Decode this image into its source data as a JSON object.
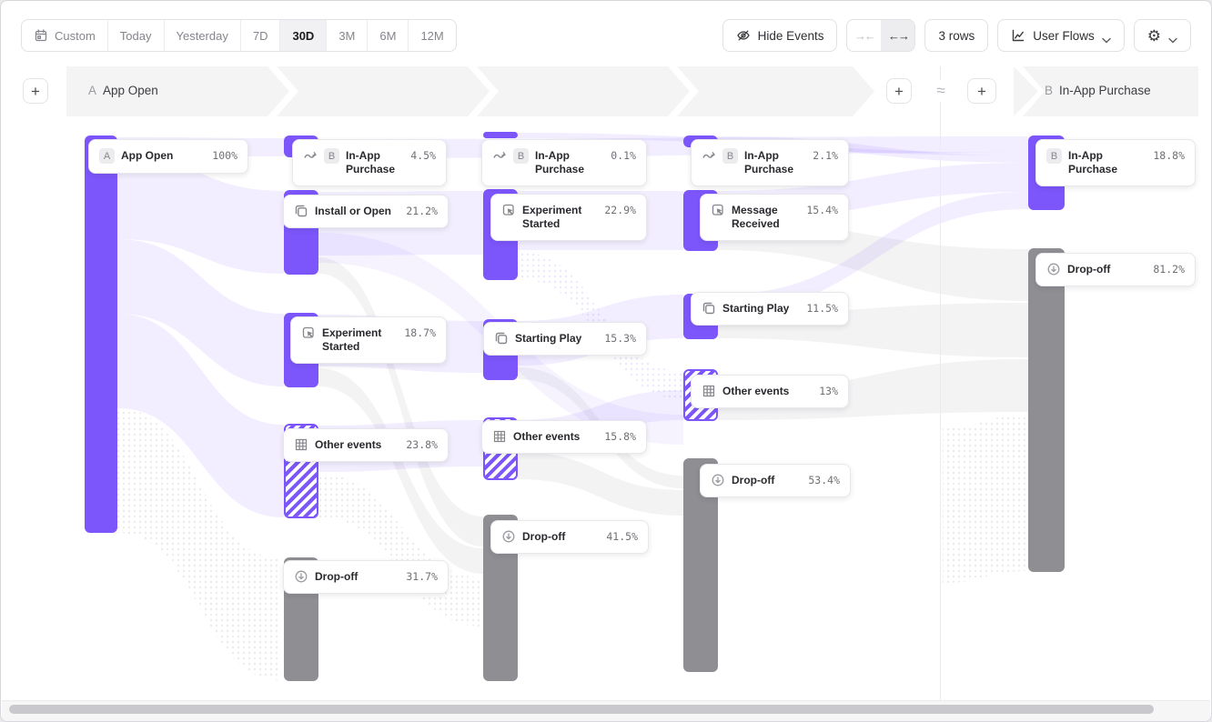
{
  "toolbar": {
    "date_ranges": {
      "items": [
        {
          "label": "Custom",
          "icon": "calendar-icon",
          "selected": false
        },
        {
          "label": "Today",
          "selected": false
        },
        {
          "label": "Yesterday",
          "selected": false
        },
        {
          "label": "7D",
          "selected": false
        },
        {
          "label": "30D",
          "selected": true
        },
        {
          "label": "3M",
          "selected": false
        },
        {
          "label": "6M",
          "selected": false
        },
        {
          "label": "12M",
          "selected": false
        }
      ]
    },
    "hide_events": {
      "label": "Hide Events",
      "icon": "eye-off-icon"
    },
    "collapse_expand": {
      "collapse_icon": "arrows-collapse-icon",
      "collapse_glyph": "→←",
      "expand_icon": "arrows-expand-icon",
      "expand_glyph": "←→",
      "expanded_selected": true
    },
    "rows_button": {
      "label": "3 rows"
    },
    "view_selector": {
      "label": "User Flows",
      "icon": "flow-chart-icon"
    },
    "settings": {
      "icon": "gear-icon",
      "glyph": "⚙"
    }
  },
  "flow_headers": {
    "left": {
      "badge": "A",
      "label": "App Open"
    },
    "right": {
      "badge": "B",
      "label": "In-App Purchase"
    },
    "approx_symbol": "≈",
    "add_step_icon": "plus-icon",
    "plus_glyph": "+"
  },
  "colors": {
    "accent_purple": "#7C56FB",
    "link_purple_tint": "#EDE9FB",
    "dropoff_gray": "#8E8E93",
    "banner_gray": "#F4F4F5"
  },
  "chart_data": {
    "type": "sankey",
    "title": "User Flows: App Open (A) → In-App Purchase (B)",
    "date_range": "30D",
    "start_event": "App Open",
    "end_event": "In-App Purchase",
    "steps": [
      {
        "nodes": [
          {
            "label": "App Open",
            "pct": "100%",
            "value": 100,
            "badge": "A",
            "icon": null,
            "kind": "start"
          }
        ]
      },
      {
        "nodes": [
          {
            "label": "In-App Purchase",
            "pct": "4.5%",
            "value": 4.5,
            "badge": "B",
            "icon": "flow-arrow-icon",
            "kind": "segment"
          },
          {
            "label": "Install or Open",
            "pct": "21.2%",
            "value": 21.2,
            "badge": null,
            "icon": "event-icon",
            "kind": "event"
          },
          {
            "label": "Experiment Started",
            "pct": "18.7%",
            "value": 18.7,
            "badge": null,
            "icon": "action-icon",
            "kind": "event"
          },
          {
            "label": "Other events",
            "pct": "23.8%",
            "value": 23.8,
            "badge": null,
            "icon": "grid-icon",
            "kind": "other"
          },
          {
            "label": "Drop-off",
            "pct": "31.7%",
            "value": 31.7,
            "badge": null,
            "icon": "arrow-down-circle-icon",
            "kind": "dropoff"
          }
        ]
      },
      {
        "nodes": [
          {
            "label": "In-App Purchase",
            "pct": "0.1%",
            "value": 0.1,
            "badge": "B",
            "icon": "flow-arrow-icon",
            "kind": "segment"
          },
          {
            "label": "Experiment Started",
            "pct": "22.9%",
            "value": 22.9,
            "badge": null,
            "icon": "action-icon",
            "kind": "event"
          },
          {
            "label": "Starting Play",
            "pct": "15.3%",
            "value": 15.3,
            "badge": null,
            "icon": "event-icon",
            "kind": "event"
          },
          {
            "label": "Other events",
            "pct": "15.8%",
            "value": 15.8,
            "badge": null,
            "icon": "grid-icon",
            "kind": "other"
          },
          {
            "label": "Drop-off",
            "pct": "41.5%",
            "value": 41.5,
            "badge": null,
            "icon": "arrow-down-circle-icon",
            "kind": "dropoff"
          }
        ]
      },
      {
        "nodes": [
          {
            "label": "In-App Purchase",
            "pct": "2.1%",
            "value": 2.1,
            "badge": "B",
            "icon": "flow-arrow-icon",
            "kind": "segment"
          },
          {
            "label": "Message Received",
            "pct": "15.4%",
            "value": 15.4,
            "badge": null,
            "icon": "action-icon",
            "kind": "event"
          },
          {
            "label": "Starting Play",
            "pct": "11.5%",
            "value": 11.5,
            "badge": null,
            "icon": "event-icon",
            "kind": "event"
          },
          {
            "label": "Other events",
            "pct": "13%",
            "value": 13,
            "badge": null,
            "icon": "grid-icon",
            "kind": "other"
          },
          {
            "label": "Drop-off",
            "pct": "53.4%",
            "value": 53.4,
            "badge": null,
            "icon": "arrow-down-circle-icon",
            "kind": "dropoff"
          }
        ]
      },
      {
        "nodes": [
          {
            "label": "In-App Purchase",
            "pct": "18.8%",
            "value": 18.8,
            "badge": "B",
            "icon": null,
            "kind": "end"
          },
          {
            "label": "Drop-off",
            "pct": "81.2%",
            "value": 81.2,
            "badge": null,
            "icon": "arrow-down-circle-icon",
            "kind": "dropoff"
          }
        ]
      }
    ]
  }
}
